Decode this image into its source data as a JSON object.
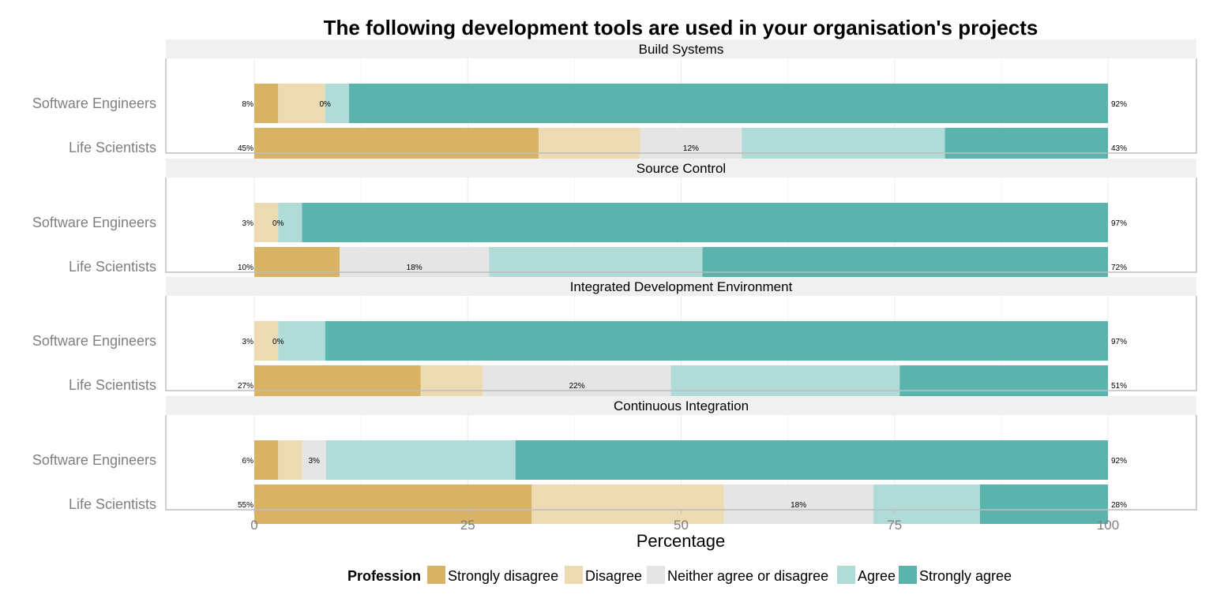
{
  "chart_data": {
    "type": "bar",
    "orientation": "horizontal",
    "stacked": true,
    "title": "The following development tools are used in your organisation's projects",
    "xlabel": "Percentage",
    "ylabel": "",
    "xlim": [
      0,
      100
    ],
    "x_ticks": [
      "0",
      "25",
      "50",
      "75",
      "100"
    ],
    "x_tick_values": [
      0,
      25,
      50,
      75,
      100
    ],
    "grid": true,
    "legend": {
      "title": "Profession",
      "position": "bottom",
      "labels": [
        "Strongly disagree",
        "Disagree",
        "Neither agree or disagree",
        "Agree",
        "Strongly agree"
      ],
      "colors": [
        "#d8b365",
        "#ebdab2",
        "#e5e5e5",
        "#b0dbd7",
        "#5ab4ac"
      ]
    },
    "panels": [
      {
        "title": "Build Systems",
        "rows": [
          {
            "category": "Software Engineers",
            "values": [
              2.8,
              5.5,
              0,
              2.8,
              88.9
            ],
            "left_label": "8%",
            "center_label": "0%",
            "right_label": "92%"
          },
          {
            "category": "Life Scientists",
            "values": [
              33.3,
              11.9,
              11.9,
              23.8,
              19.1
            ],
            "left_label": "45%",
            "center_label": "12%",
            "right_label": "43%"
          }
        ]
      },
      {
        "title": "Source Control",
        "rows": [
          {
            "category": "Software Engineers",
            "values": [
              0,
              2.8,
              0,
              2.8,
              94.4
            ],
            "left_label": "3%",
            "center_label": "0%",
            "right_label": "97%"
          },
          {
            "category": "Life Scientists",
            "values": [
              10,
              0,
              17.5,
              25,
              47.5
            ],
            "left_label": "10%",
            "center_label": "18%",
            "right_label": "72%"
          }
        ]
      },
      {
        "title": "Integrated Development Environment",
        "rows": [
          {
            "category": "Software Engineers",
            "values": [
              0,
              2.8,
              0,
              5.5,
              91.7
            ],
            "left_label": "3%",
            "center_label": "0%",
            "right_label": "97%"
          },
          {
            "category": "Life Scientists",
            "values": [
              19.5,
              7.3,
              22,
              26.8,
              24.4
            ],
            "left_label": "27%",
            "center_label": "22%",
            "right_label": "51%"
          }
        ]
      },
      {
        "title": "Continuous Integration",
        "rows": [
          {
            "category": "Software Engineers",
            "values": [
              2.8,
              2.8,
              2.8,
              22.2,
              69.4
            ],
            "left_label": "6%",
            "center_label": "3%",
            "right_label": "92%"
          },
          {
            "category": "Life Scientists",
            "values": [
              32.5,
              22.5,
              17.5,
              12.5,
              15
            ],
            "left_label": "55%",
            "center_label": "18%",
            "right_label": "28%"
          }
        ]
      }
    ]
  }
}
